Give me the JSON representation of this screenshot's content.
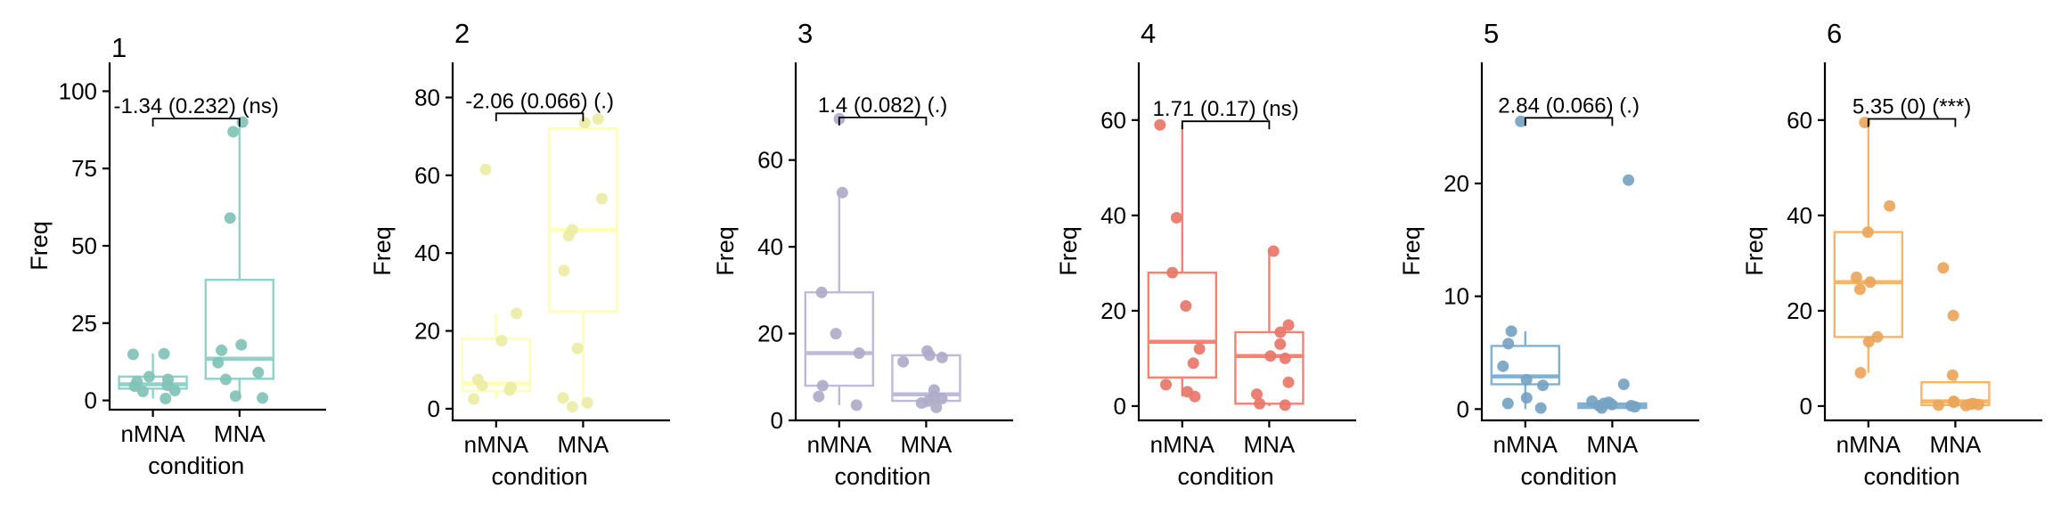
{
  "chart_data": [
    {
      "type": "box",
      "title": "1",
      "xlabel": "condition",
      "ylabel": "Freq",
      "categories": [
        "nMNA",
        "MNA"
      ],
      "ylim": [
        -3,
        103
      ],
      "yticks": [
        0,
        25,
        50,
        75,
        100
      ],
      "color": "#8dd3c7",
      "boxes": [
        {
          "category": "nMNA",
          "q1": 3.8,
          "median": 5.2,
          "q3": 7.7,
          "whisker_low": 0.6,
          "whisker_high": 15.2
        },
        {
          "category": "MNA",
          "q1": 7.0,
          "median": 13.5,
          "q3": 39.0,
          "whisker_low": 0.8,
          "whisker_high": 90.0
        }
      ],
      "points": {
        "nMNA": [
          15.1,
          14.9,
          7.7,
          6.8,
          6.1,
          4.9,
          4.6,
          3.2,
          2.9,
          0.6
        ],
        "MNA": [
          90.0,
          86.9,
          59.0,
          18.0,
          16.2,
          12.2,
          9.0,
          6.8,
          1.4,
          0.8
        ]
      },
      "comparison": {
        "label": "-1.34 (0.232) (ns)",
        "y": 90
      }
    },
    {
      "type": "box",
      "title": "2",
      "xlabel": "condition",
      "ylabel": "Freq",
      "categories": [
        "nMNA",
        "MNA"
      ],
      "ylim": [
        -3,
        84
      ],
      "yticks": [
        0,
        20,
        40,
        60,
        80
      ],
      "color": "#ffffb3",
      "boxes": [
        {
          "category": "nMNA",
          "q1": 4.5,
          "median": 6.5,
          "q3": 18.0,
          "whisker_low": 2.5,
          "whisker_high": 24.5
        },
        {
          "category": "MNA",
          "q1": 25.0,
          "median": 46.0,
          "q3": 72.0,
          "whisker_low": 0.5,
          "whisker_high": 75.0
        }
      ],
      "points": {
        "nMNA": [
          61.5,
          24.5,
          17.5,
          7.5,
          6.0,
          5.5,
          4.8,
          2.5
        ],
        "MNA": [
          74.5,
          73.5,
          54.0,
          46.0,
          44.5,
          35.5,
          15.5,
          2.8,
          1.5,
          0.5
        ]
      },
      "comparison": {
        "label": "-2.06 (0.066) (.)",
        "y": 75
      }
    },
    {
      "type": "box",
      "title": "3",
      "xlabel": "condition",
      "ylabel": "Freq",
      "categories": [
        "nMNA",
        "MNA"
      ],
      "ylim": [
        0,
        78
      ],
      "yticks": [
        0,
        20,
        40,
        60
      ],
      "color": "#bebada",
      "boxes": [
        {
          "category": "nMNA",
          "q1": 8.0,
          "median": 15.5,
          "q3": 29.5,
          "whisker_low": 3.5,
          "whisker_high": 52.5
        },
        {
          "category": "MNA",
          "q1": 4.5,
          "median": 6.0,
          "q3": 15.0,
          "whisker_low": 3.0,
          "whisker_high": 15.5
        }
      ],
      "points": {
        "nMNA": [
          69.5,
          52.5,
          29.5,
          20.0,
          15.5,
          8.0,
          5.5,
          3.5
        ],
        "MNA": [
          16.0,
          15.0,
          14.5,
          13.5,
          7.0,
          5.5,
          5.0,
          4.5,
          4.0,
          3.0
        ]
      },
      "comparison": {
        "label": "1.4 (0.082) (.)",
        "y": 69
      }
    },
    {
      "type": "box",
      "title": "4",
      "xlabel": "condition",
      "ylabel": "Freq",
      "categories": [
        "nMNA",
        "MNA"
      ],
      "ylim": [
        -3,
        68
      ],
      "yticks": [
        0,
        20,
        40,
        60
      ],
      "color": "#fb8072",
      "boxes": [
        {
          "category": "nMNA",
          "q1": 6.0,
          "median": 13.5,
          "q3": 28.0,
          "whisker_low": 2.0,
          "whisker_high": 59.0
        },
        {
          "category": "MNA",
          "q1": 0.5,
          "median": 10.5,
          "q3": 15.5,
          "whisker_low": 0.0,
          "whisker_high": 33.0
        }
      ],
      "points": {
        "nMNA": [
          59.0,
          39.5,
          28.0,
          21.0,
          12.0,
          9.0,
          4.5,
          3.0,
          2.0
        ],
        "MNA": [
          32.5,
          17.0,
          15.5,
          13.0,
          10.5,
          10.0,
          5.0,
          2.5,
          0.5,
          0.2
        ]
      },
      "comparison": {
        "label": "1.71 (0.17) (ns)",
        "y": 59
      }
    },
    {
      "type": "box",
      "title": "5",
      "xlabel": "condition",
      "ylabel": "Freq",
      "categories": [
        "nMNA",
        "MNA"
      ],
      "ylim": [
        -1,
        29
      ],
      "yticks": [
        0,
        10,
        20
      ],
      "color": "#80b1d3",
      "boxes": [
        {
          "category": "nMNA",
          "q1": 2.2,
          "median": 2.9,
          "q3": 5.6,
          "whisker_low": 0.0,
          "whisker_high": 6.9
        },
        {
          "category": "MNA",
          "q1": 0.1,
          "median": 0.3,
          "q3": 0.5,
          "whisker_low": 0.0,
          "whisker_high": 0.7
        }
      ],
      "points": {
        "nMNA": [
          25.5,
          6.9,
          5.8,
          3.8,
          2.6,
          2.1,
          1.0,
          0.5,
          0.1
        ],
        "MNA": [
          20.3,
          2.2,
          0.7,
          0.6,
          0.5,
          0.4,
          0.3,
          0.3,
          0.2,
          0.1
        ]
      },
      "comparison": {
        "label": "2.84 (0.066) (.)",
        "y": 25.5
      }
    },
    {
      "type": "box",
      "title": "6",
      "xlabel": "condition",
      "ylabel": "Freq",
      "categories": [
        "nMNA",
        "MNA"
      ],
      "ylim": [
        -3,
        68
      ],
      "yticks": [
        0,
        20,
        40,
        60
      ],
      "color": "#fdb462",
      "boxes": [
        {
          "category": "nMNA",
          "q1": 14.5,
          "median": 26.0,
          "q3": 36.5,
          "whisker_low": 7.0,
          "whisker_high": 59.5
        },
        {
          "category": "MNA",
          "q1": 0.2,
          "median": 1.0,
          "q3": 5.0,
          "whisker_low": 0.0,
          "whisker_high": 5.5
        }
      ],
      "points": {
        "nMNA": [
          59.5,
          42.0,
          36.5,
          27.0,
          26.0,
          24.5,
          14.5,
          13.5,
          7.0
        ],
        "MNA": [
          29.0,
          19.0,
          6.5,
          1.0,
          0.8,
          0.5,
          0.4,
          0.3,
          0.2,
          0.1
        ]
      },
      "comparison": {
        "label": "5.35 (0) (***)",
        "y": 59.5
      }
    }
  ]
}
